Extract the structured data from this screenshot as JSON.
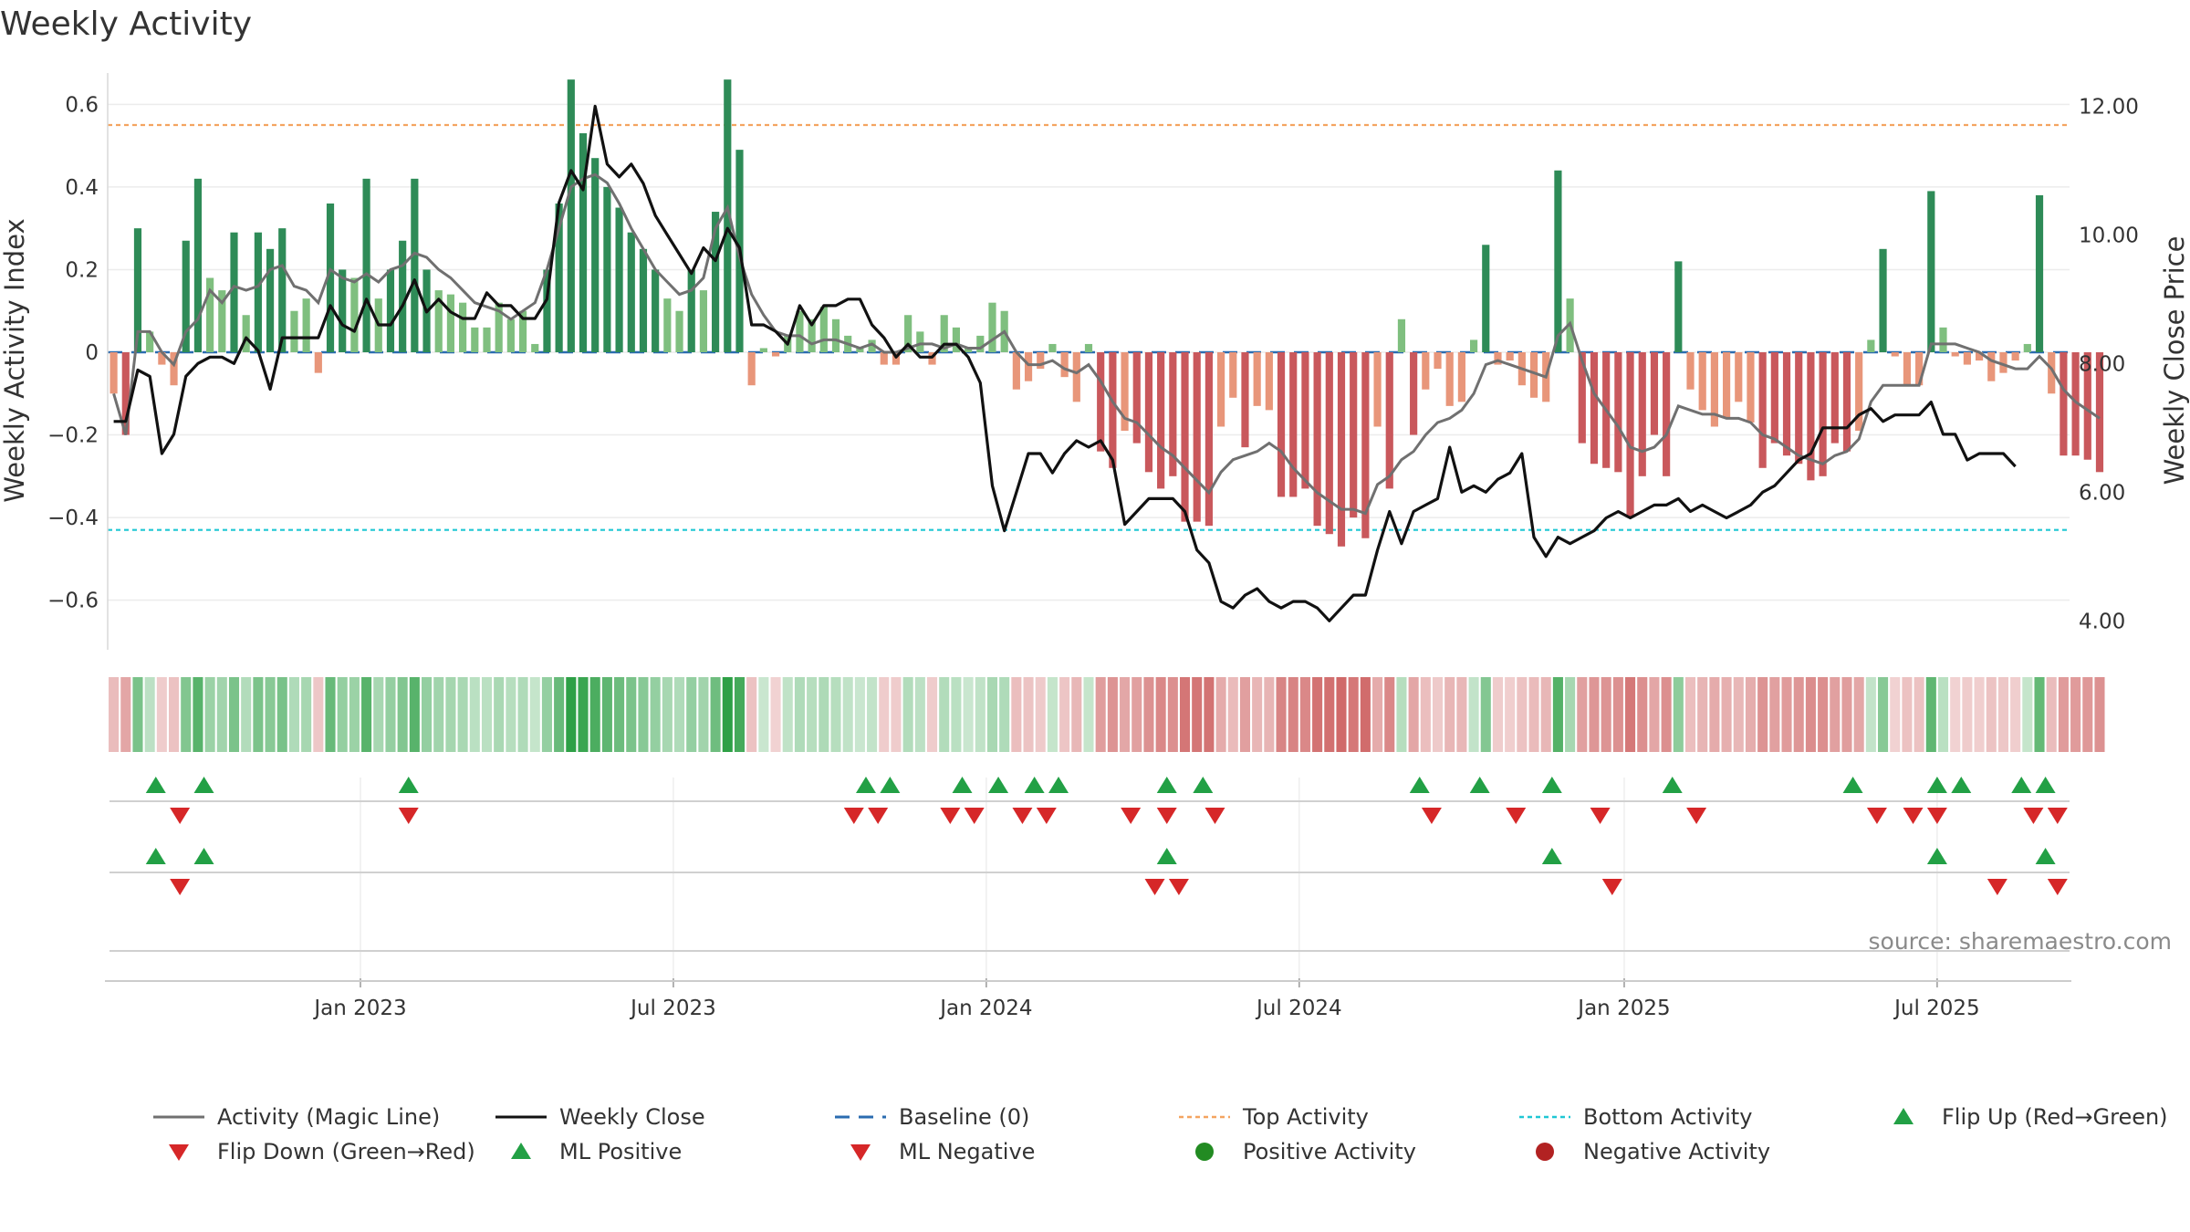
{
  "title": "Weekly Activity",
  "source_note": "source: sharemaestro.com",
  "colors": {
    "pos_strong": "#2e8b57",
    "pos_weak": "#7fbf7f",
    "neg_strong": "#c9585c",
    "neg_weak": "#e8967a",
    "magic_line": "#707070",
    "close_line": "#111111",
    "baseline": "#2b6cb0",
    "top_activity": "#f4a460",
    "bottom_activity": "#1fc7d4",
    "flip_up": "#22a045",
    "flip_down": "#d62728",
    "positive_dot": "#228b22",
    "negative_dot": "#b22222"
  },
  "chart_data": {
    "type": "bar",
    "title": "Weekly Activity",
    "ylabel_left": "Weekly Activity Index",
    "ylabel_right": "Weekly Close Price",
    "ylim_left": [
      -0.72,
      0.72
    ],
    "ylim_right": [
      3.55,
      12.8
    ],
    "yticks_left": [
      "0.6",
      "0.4",
      "0.2",
      "0",
      "−0.2",
      "−0.4",
      "−0.6"
    ],
    "yticks_left_values": [
      0.6,
      0.4,
      0.2,
      0,
      -0.2,
      -0.4,
      -0.6
    ],
    "yticks_right": [
      "12.00",
      "10.00",
      "8.00",
      "6.00",
      "4.00"
    ],
    "yticks_right_values": [
      12,
      10,
      8,
      6,
      4
    ],
    "x_range": [
      "2022-08-08",
      "2025-09-22"
    ],
    "xticks": [
      {
        "label": "Jan 2023",
        "date": "2023-01-02"
      },
      {
        "label": "Jul 2023",
        "date": "2023-07-03"
      },
      {
        "label": "Jan 2024",
        "date": "2024-01-01"
      },
      {
        "label": "Jul 2024",
        "date": "2024-07-01"
      },
      {
        "label": "Jan 2025",
        "date": "2025-01-06"
      },
      {
        "label": "Jul 2025",
        "date": "2025-07-07"
      }
    ],
    "top_activity": 0.55,
    "bottom_activity": -0.43,
    "baseline": 0,
    "weeks_start": "2022-08-08",
    "activity": [
      -0.1,
      -0.2,
      0.3,
      0.05,
      -0.03,
      -0.08,
      0.27,
      0.42,
      0.18,
      0.15,
      0.29,
      0.09,
      0.29,
      0.25,
      0.3,
      0.1,
      0.13,
      -0.05,
      0.36,
      0.2,
      0.18,
      0.42,
      0.13,
      0.2,
      0.27,
      0.42,
      0.2,
      0.15,
      0.14,
      0.12,
      0.06,
      0.06,
      0.12,
      0.08,
      0.1,
      0.02,
      0.2,
      0.36,
      0.66,
      0.53,
      0.47,
      0.4,
      0.35,
      0.29,
      0.25,
      0.2,
      0.13,
      0.1,
      0.2,
      0.15,
      0.34,
      0.66,
      0.49,
      -0.08,
      0.01,
      -0.01,
      0.04,
      0.1,
      0.08,
      0.11,
      0.08,
      0.04,
      0.01,
      0.03,
      -0.03,
      -0.03,
      0.09,
      0.05,
      -0.03,
      0.09,
      0.06,
      0.01,
      0.04,
      0.12,
      0.1,
      -0.09,
      -0.07,
      -0.04,
      0.02,
      -0.06,
      -0.12,
      0.02,
      -0.24,
      -0.28,
      -0.19,
      -0.22,
      -0.29,
      -0.33,
      -0.3,
      -0.41,
      -0.41,
      -0.42,
      -0.18,
      -0.11,
      -0.23,
      -0.13,
      -0.14,
      -0.35,
      -0.35,
      -0.33,
      -0.42,
      -0.44,
      -0.47,
      -0.4,
      -0.45,
      -0.18,
      -0.33,
      0.08,
      -0.2,
      -0.09,
      -0.04,
      -0.13,
      -0.12,
      0.03,
      0.26,
      -0.03,
      -0.02,
      -0.08,
      -0.11,
      -0.12,
      0.44,
      0.13,
      -0.22,
      -0.27,
      -0.28,
      -0.29,
      -0.4,
      -0.3,
      -0.2,
      -0.3,
      0.22,
      -0.09,
      -0.14,
      -0.18,
      -0.16,
      -0.12,
      -0.17,
      -0.28,
      -0.22,
      -0.25,
      -0.27,
      -0.31,
      -0.3,
      -0.22,
      -0.24,
      -0.19,
      0.03,
      0.25,
      -0.01,
      -0.08,
      -0.08,
      0.39,
      0.06,
      -0.01,
      -0.03,
      -0.02,
      -0.07,
      -0.05,
      -0.02,
      0.02,
      0.38,
      -0.1,
      -0.25,
      -0.25,
      -0.26,
      -0.29
    ],
    "magic_line": [
      -0.1,
      -0.2,
      0.05,
      0.05,
      0.0,
      -0.03,
      0.05,
      0.08,
      0.15,
      0.12,
      0.16,
      0.15,
      0.16,
      0.2,
      0.21,
      0.16,
      0.15,
      0.12,
      0.2,
      0.18,
      0.17,
      0.19,
      0.17,
      0.2,
      0.21,
      0.24,
      0.23,
      0.2,
      0.18,
      0.15,
      0.12,
      0.11,
      0.1,
      0.08,
      0.1,
      0.12,
      0.2,
      0.3,
      0.4,
      0.42,
      0.43,
      0.41,
      0.36,
      0.3,
      0.25,
      0.2,
      0.17,
      0.14,
      0.15,
      0.18,
      0.3,
      0.35,
      0.23,
      0.14,
      0.09,
      0.05,
      0.04,
      0.04,
      0.02,
      0.03,
      0.03,
      0.02,
      0.01,
      0.02,
      0.0,
      0.0,
      0.01,
      0.02,
      0.02,
      0.01,
      0.02,
      0.01,
      0.01,
      0.03,
      0.05,
      0.0,
      -0.03,
      -0.03,
      -0.02,
      -0.04,
      -0.05,
      -0.03,
      -0.07,
      -0.12,
      -0.16,
      -0.17,
      -0.2,
      -0.23,
      -0.25,
      -0.28,
      -0.31,
      -0.34,
      -0.29,
      -0.26,
      -0.25,
      -0.24,
      -0.22,
      -0.24,
      -0.28,
      -0.31,
      -0.34,
      -0.36,
      -0.38,
      -0.38,
      -0.39,
      -0.32,
      -0.3,
      -0.26,
      -0.24,
      -0.2,
      -0.17,
      -0.16,
      -0.14,
      -0.1,
      -0.03,
      -0.02,
      -0.03,
      -0.04,
      -0.05,
      -0.06,
      0.04,
      0.07,
      -0.02,
      -0.1,
      -0.14,
      -0.18,
      -0.23,
      -0.24,
      -0.23,
      -0.2,
      -0.13,
      -0.14,
      -0.15,
      -0.15,
      -0.16,
      -0.16,
      -0.17,
      -0.2,
      -0.21,
      -0.23,
      -0.25,
      -0.26,
      -0.27,
      -0.25,
      -0.24,
      -0.21,
      -0.12,
      -0.08,
      -0.08,
      -0.08,
      -0.08,
      0.02,
      0.02,
      0.02,
      0.01,
      0.0,
      -0.02,
      -0.03,
      -0.04,
      -0.04,
      -0.01,
      -0.04,
      -0.09,
      -0.12,
      -0.14,
      -0.16
    ],
    "weekly_close": [
      7.1,
      7.1,
      7.9,
      7.8,
      6.6,
      6.9,
      7.8,
      8.0,
      8.1,
      8.1,
      8.0,
      8.4,
      8.2,
      7.6,
      8.4,
      8.4,
      8.4,
      8.4,
      8.9,
      8.6,
      8.5,
      9.0,
      8.6,
      8.6,
      8.9,
      9.3,
      8.8,
      9.0,
      8.8,
      8.7,
      8.7,
      9.1,
      8.9,
      8.9,
      8.7,
      8.7,
      9.0,
      10.5,
      11.0,
      10.7,
      12.0,
      11.1,
      10.9,
      11.1,
      10.8,
      10.3,
      10.0,
      9.7,
      9.4,
      9.8,
      9.6,
      10.1,
      9.8,
      8.6,
      8.6,
      8.5,
      8.3,
      8.9,
      8.6,
      8.9,
      8.9,
      9.0,
      9.0,
      8.6,
      8.4,
      8.1,
      8.3,
      8.1,
      8.1,
      8.3,
      8.3,
      8.1,
      7.7,
      6.1,
      5.4,
      6.0,
      6.6,
      6.6,
      6.3,
      6.6,
      6.8,
      6.7,
      6.8,
      6.5,
      5.5,
      5.7,
      5.9,
      5.9,
      5.9,
      5.7,
      5.1,
      4.9,
      4.3,
      4.2,
      4.4,
      4.5,
      4.3,
      4.2,
      4.3,
      4.3,
      4.2,
      4.0,
      4.2,
      4.4,
      4.4,
      5.1,
      5.7,
      5.2,
      5.7,
      5.8,
      5.9,
      6.7,
      6.0,
      6.1,
      6.0,
      6.2,
      6.3,
      6.6,
      5.3,
      5.0,
      5.3,
      5.2,
      5.3,
      5.4,
      5.6,
      5.7,
      5.6,
      5.7,
      5.8,
      5.8,
      5.9,
      5.7,
      5.8,
      5.7,
      5.6,
      5.7,
      5.8,
      6.0,
      6.1,
      6.3,
      6.5,
      6.6,
      7.0,
      7.0,
      7.0,
      7.2,
      7.3,
      7.1,
      7.2,
      7.2,
      7.2,
      7.4,
      6.9,
      6.9,
      6.5,
      6.6,
      6.6,
      6.6,
      6.4
    ],
    "flip_up": [
      "2022-09-05",
      "2022-10-03",
      "2023-01-30",
      "2023-10-23",
      "2023-11-06",
      "2023-12-18",
      "2024-01-08",
      "2024-01-29",
      "2024-02-12",
      "2024-04-15",
      "2024-05-06",
      "2024-09-09",
      "2024-10-14",
      "2024-11-25",
      "2025-02-03",
      "2025-05-19",
      "2025-07-07",
      "2025-07-21",
      "2025-08-25",
      "2025-09-08"
    ],
    "flip_down": [
      "2022-09-19",
      "2023-01-30",
      "2023-10-16",
      "2023-10-30",
      "2023-12-11",
      "2023-12-25",
      "2024-01-22",
      "2024-02-05",
      "2024-03-25",
      "2024-04-15",
      "2024-05-13",
      "2024-09-16",
      "2024-11-04",
      "2024-12-23",
      "2025-02-17",
      "2025-06-02",
      "2025-06-23",
      "2025-07-07",
      "2025-09-01",
      "2025-09-15"
    ],
    "ml_positive": [
      "2022-09-05",
      "2022-10-03",
      "2024-04-15",
      "2024-11-25",
      "2025-07-07",
      "2025-09-08"
    ],
    "ml_negative": [
      "2022-09-19",
      "2024-04-08",
      "2024-04-22",
      "2024-12-30",
      "2025-08-11",
      "2025-09-15"
    ]
  },
  "legend": [
    {
      "label": "Activity (Magic Line)",
      "marker": "line-grey"
    },
    {
      "label": "Weekly Close",
      "marker": "line-black"
    },
    {
      "label": "Baseline (0)",
      "marker": "dash-blue"
    },
    {
      "label": "Top Activity",
      "marker": "dot-orange"
    },
    {
      "label": "Bottom Activity",
      "marker": "dot-cyan"
    },
    {
      "label": "Flip Up (Red→Green)",
      "marker": "tri-up"
    },
    {
      "label": "Flip Down (Green→Red)",
      "marker": "tri-down"
    },
    {
      "label": "ML Positive",
      "marker": "tri-up"
    },
    {
      "label": "ML Negative",
      "marker": "tri-down"
    },
    {
      "label": "Positive Activity",
      "marker": "circle-green"
    },
    {
      "label": "Negative Activity",
      "marker": "circle-red"
    }
  ]
}
